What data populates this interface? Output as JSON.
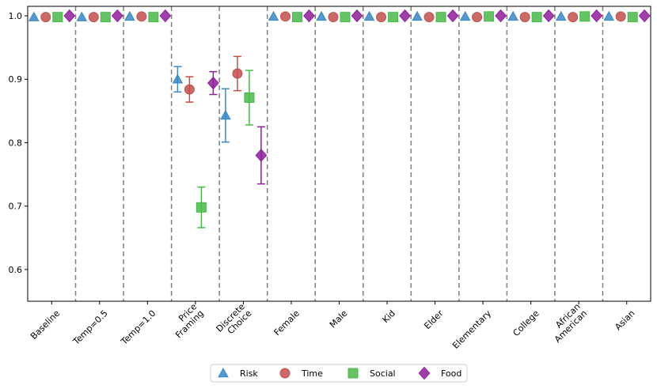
{
  "chart_data": {
    "type": "scatter",
    "title": "",
    "xlabel": "",
    "ylabel": "",
    "ylim": [
      0.55,
      1.015
    ],
    "yticks": [
      0.6,
      0.7,
      0.8,
      0.9,
      1.0
    ],
    "ytick_labels": [
      "0.6",
      "0.7",
      "0.8",
      "0.9",
      "1.0"
    ],
    "categories": [
      [
        "Baseline"
      ],
      [
        "Temp=0.5"
      ],
      [
        "Temp=1.0"
      ],
      [
        "Price",
        "Framing"
      ],
      [
        "Discrete",
        "Choice"
      ],
      [
        "Female"
      ],
      [
        "Male"
      ],
      [
        "Kid"
      ],
      [
        "Elder"
      ],
      [
        "Elementary"
      ],
      [
        "College"
      ],
      [
        "African",
        "American"
      ],
      [
        "Asian"
      ]
    ],
    "vertical_separators": true,
    "legend_position": "bottom-center",
    "series": [
      {
        "name": "Risk",
        "color": "#3a87c4",
        "marker": "triangle",
        "values": [
          0.998,
          0.998,
          0.999,
          0.9,
          0.843,
          0.999,
          0.999,
          0.999,
          0.999,
          0.999,
          0.999,
          0.999,
          0.999
        ],
        "errors": [
          0,
          0,
          0,
          0.02,
          0.042,
          0,
          0,
          0,
          0,
          0,
          0,
          0,
          0
        ]
      },
      {
        "name": "Time",
        "color": "#c0504d",
        "marker": "circle",
        "values": [
          0.998,
          0.998,
          0.999,
          0.884,
          0.909,
          0.999,
          0.998,
          0.998,
          0.998,
          0.998,
          0.998,
          0.998,
          0.999
        ],
        "errors": [
          0,
          0,
          0,
          0.02,
          0.027,
          0,
          0,
          0,
          0,
          0,
          0,
          0,
          0
        ]
      },
      {
        "name": "Social",
        "color": "#4ab84a",
        "marker": "square",
        "values": [
          0.998,
          0.998,
          0.998,
          0.698,
          0.871,
          0.998,
          0.998,
          0.998,
          0.998,
          0.999,
          0.998,
          0.999,
          0.998
        ],
        "errors": [
          0,
          0,
          0,
          0.032,
          0.043,
          0,
          0,
          0,
          0,
          0,
          0,
          0,
          0
        ]
      },
      {
        "name": "Food",
        "color": "#8e1e9a",
        "marker": "diamond",
        "values": [
          1.0,
          1.0,
          1.0,
          0.894,
          0.78,
          1.0,
          1.0,
          1.0,
          1.0,
          1.0,
          1.0,
          1.0,
          1.0
        ],
        "errors": [
          0,
          0,
          0,
          0.018,
          0.045,
          0,
          0,
          0,
          0,
          0,
          0,
          0,
          0
        ]
      }
    ]
  }
}
